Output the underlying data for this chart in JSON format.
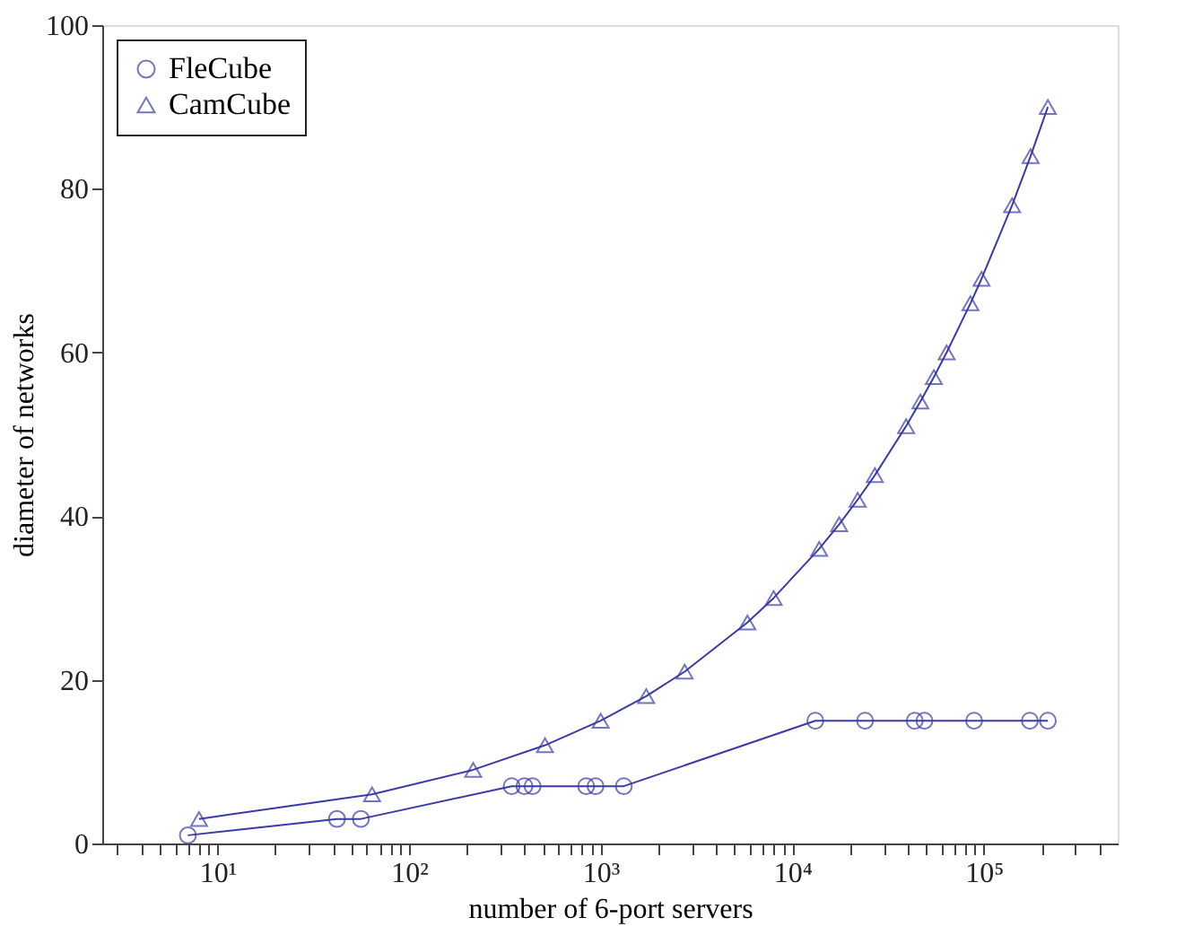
{
  "chart_data": {
    "type": "line",
    "xlabel": "number of 6-port servers",
    "ylabel": "diameter of networks",
    "log": "x",
    "xlim": [
      2.5,
      500000
    ],
    "ylim": [
      0,
      100
    ],
    "xticks": [
      {
        "value": 3,
        "label": null
      },
      {
        "value": 4,
        "label": null
      },
      {
        "value": 5,
        "label": null
      },
      {
        "value": 6,
        "label": null
      },
      {
        "value": 7,
        "label": null
      },
      {
        "value": 8,
        "label": null
      },
      {
        "value": 9,
        "label": null
      },
      {
        "value": 10,
        "label": "10¹"
      },
      {
        "value": 20,
        "label": null
      },
      {
        "value": 30,
        "label": null
      },
      {
        "value": 40,
        "label": null
      },
      {
        "value": 50,
        "label": null
      },
      {
        "value": 60,
        "label": null
      },
      {
        "value": 70,
        "label": null
      },
      {
        "value": 80,
        "label": null
      },
      {
        "value": 90,
        "label": null
      },
      {
        "value": 100,
        "label": "10²"
      },
      {
        "value": 200,
        "label": null
      },
      {
        "value": 300,
        "label": null
      },
      {
        "value": 400,
        "label": null
      },
      {
        "value": 500,
        "label": null
      },
      {
        "value": 600,
        "label": null
      },
      {
        "value": 700,
        "label": null
      },
      {
        "value": 800,
        "label": null
      },
      {
        "value": 900,
        "label": null
      },
      {
        "value": 1000,
        "label": "10³"
      },
      {
        "value": 2000,
        "label": null
      },
      {
        "value": 3000,
        "label": null
      },
      {
        "value": 4000,
        "label": null
      },
      {
        "value": 5000,
        "label": null
      },
      {
        "value": 6000,
        "label": null
      },
      {
        "value": 7000,
        "label": null
      },
      {
        "value": 8000,
        "label": null
      },
      {
        "value": 9000,
        "label": null
      },
      {
        "value": 10000,
        "label": "10⁴"
      },
      {
        "value": 20000,
        "label": null
      },
      {
        "value": 30000,
        "label": null
      },
      {
        "value": 40000,
        "label": null
      },
      {
        "value": 50000,
        "label": null
      },
      {
        "value": 60000,
        "label": null
      },
      {
        "value": 70000,
        "label": null
      },
      {
        "value": 80000,
        "label": null
      },
      {
        "value": 90000,
        "label": null
      },
      {
        "value": 100000,
        "label": "10⁵"
      },
      {
        "value": 200000,
        "label": null
      },
      {
        "value": 300000,
        "label": null
      },
      {
        "value": 400000,
        "label": null
      }
    ],
    "yticks": [
      0,
      20,
      40,
      60,
      80,
      100
    ],
    "grid": false,
    "legend": "top left",
    "line_style": "solid",
    "series": [
      {
        "name": "FleCube",
        "color": "#3a3aa8",
        "marker": "circle",
        "x": [
          7,
          42,
          56,
          343,
          400,
          441,
          840,
          940,
          1320,
          13200,
          24000,
          43600,
          49000,
          89000,
          174000,
          216000
        ],
        "values": [
          1,
          3,
          3,
          7,
          7,
          7,
          7,
          7,
          7,
          15,
          15,
          15,
          15,
          15,
          15,
          15
        ]
      },
      {
        "name": "CamCube",
        "color": "#3a3aa8",
        "marker": "triangle",
        "x": [
          8,
          64,
          216,
          512,
          1000,
          1728,
          2744,
          5832,
          8000,
          13824,
          17576,
          21952,
          27000,
          39304,
          46656,
          54872,
          64000,
          85184,
          97336,
          140608,
          175616,
          216000
        ],
        "values": [
          3,
          6,
          9,
          12,
          15,
          18,
          21,
          27,
          30,
          36,
          39,
          42,
          45,
          51,
          54,
          57,
          60,
          66,
          69,
          78,
          84,
          90
        ]
      }
    ]
  }
}
